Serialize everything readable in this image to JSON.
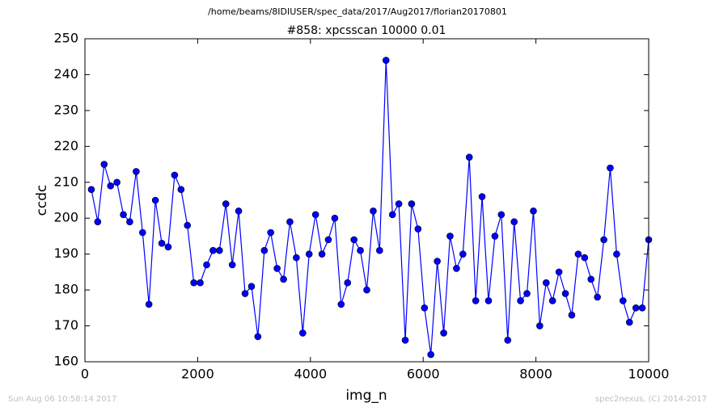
{
  "chart_data": {
    "type": "line",
    "suptitle": "/home/beams/8IDIUSER/spec_data/2017/Aug2017/florian20170801",
    "title": "#858: xpcsscan 10000 0.01",
    "xlabel": "img_n",
    "ylabel": "ccdc",
    "x": [
      114,
      227,
      341,
      455,
      568,
      682,
      795,
      909,
      1023,
      1136,
      1250,
      1364,
      1477,
      1591,
      1705,
      1818,
      1932,
      2045,
      2159,
      2273,
      2386,
      2500,
      2614,
      2727,
      2841,
      2955,
      3068,
      3182,
      3295,
      3409,
      3523,
      3636,
      3750,
      3864,
      3977,
      4091,
      4205,
      4318,
      4432,
      4545,
      4659,
      4773,
      4886,
      5000,
      5114,
      5227,
      5341,
      5455,
      5568,
      5682,
      5795,
      5909,
      6023,
      6136,
      6250,
      6364,
      6477,
      6591,
      6705,
      6818,
      6932,
      7045,
      7159,
      7273,
      7386,
      7500,
      7614,
      7727,
      7841,
      7955,
      8068,
      8182,
      8295,
      8409,
      8523,
      8636,
      8750,
      8864,
      8977,
      9091,
      9205,
      9318,
      9432,
      9545,
      9659,
      9773,
      9886,
      10000
    ],
    "values": [
      208,
      199,
      215,
      209,
      210,
      201,
      199,
      213,
      196,
      176,
      205,
      193,
      192,
      212,
      208,
      198,
      182,
      182,
      187,
      191,
      191,
      204,
      187,
      202,
      179,
      181,
      167,
      191,
      196,
      186,
      183,
      199,
      189,
      168,
      190,
      201,
      190,
      194,
      200,
      176,
      182,
      194,
      191,
      180,
      202,
      191,
      244,
      201,
      204,
      166,
      204,
      197,
      175,
      162,
      188,
      168,
      195,
      186,
      190,
      217,
      177,
      206,
      177,
      195,
      201,
      166,
      199,
      177,
      179,
      202,
      170,
      182,
      177,
      185,
      179,
      173,
      190,
      189,
      183,
      178,
      194,
      214,
      190,
      177,
      171,
      175,
      175,
      194
    ],
    "color": "#0000ff",
    "xlim": [
      0,
      10000
    ],
    "xticks": [
      0,
      2000,
      4000,
      6000,
      8000,
      10000
    ],
    "ylim": [
      160,
      250
    ],
    "yticks": [
      160,
      170,
      180,
      190,
      200,
      210,
      220,
      230,
      240,
      250
    ],
    "grid": false
  },
  "footer": {
    "timestamp": "Sun Aug 06 10:58:14 2017",
    "credit": "spec2nexus, (C) 2014-2017"
  }
}
